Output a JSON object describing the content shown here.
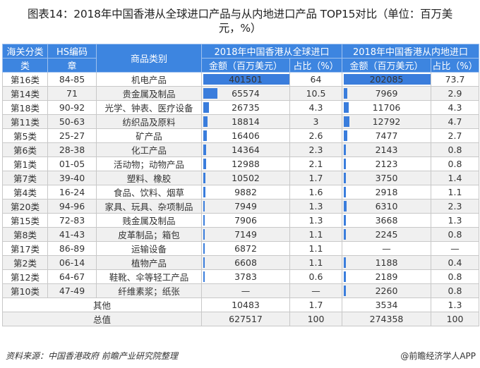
{
  "title": {
    "line1": "图表14：2018年中国香港从全球进口产品与从内地进口产品 TOP15对比（单位：百万美",
    "line2": "元，%）"
  },
  "table": {
    "headers": {
      "customs_class_top": "海关分类",
      "customs_class_bottom": "类",
      "hs_code_top": "HS编码",
      "hs_code_bottom": "章",
      "category": "商品类别",
      "global_group": "2018年中国香港从全球进口",
      "mainland_group": "2018年中国香港从内地进口",
      "amount": "金额（百万美元）",
      "share": "占比（%）"
    },
    "rows": [
      {
        "cls": "第16类",
        "hs": "84-85",
        "name": "机电产品",
        "g_amt": "401501",
        "g_pct": "64",
        "m_amt": "202085",
        "m_pct": "73.7",
        "g_bar": 98,
        "m_bar": 98
      },
      {
        "cls": "第14类",
        "hs": "71",
        "name": "贵金属及制品",
        "g_amt": "65574",
        "g_pct": "10.5",
        "m_amt": "7969",
        "m_pct": "2.9",
        "g_bar": 16,
        "m_bar": 3.9
      },
      {
        "cls": "第18类",
        "hs": "90-92",
        "name": "光学、钟表、医疗设备",
        "g_amt": "26735",
        "g_pct": "4.3",
        "m_amt": "11706",
        "m_pct": "4.3",
        "g_bar": 6.5,
        "m_bar": 5.7
      },
      {
        "cls": "第11类",
        "hs": "50-63",
        "name": "纺织品及原料",
        "g_amt": "18814",
        "g_pct": "3",
        "m_amt": "12792",
        "m_pct": "4.7",
        "g_bar": 4.6,
        "m_bar": 6.2
      },
      {
        "cls": "第5类",
        "hs": "25-27",
        "name": "矿产品",
        "g_amt": "16406",
        "g_pct": "2.6",
        "m_amt": "7477",
        "m_pct": "2.7",
        "g_bar": 4.0,
        "m_bar": 3.6
      },
      {
        "cls": "第6类",
        "hs": "28-38",
        "name": "化工产品",
        "g_amt": "14364",
        "g_pct": "2.3",
        "m_amt": "2143",
        "m_pct": "0.8",
        "g_bar": 3.5,
        "m_bar": 1.0
      },
      {
        "cls": "第1类",
        "hs": "01-05",
        "name": "活动物；动物产品",
        "g_amt": "12988",
        "g_pct": "2.1",
        "m_amt": "2123",
        "m_pct": "0.8",
        "g_bar": 3.2,
        "m_bar": 1.0
      },
      {
        "cls": "第7类",
        "hs": "39-40",
        "name": "塑料、橡胶",
        "g_amt": "10502",
        "g_pct": "1.7",
        "m_amt": "3750",
        "m_pct": "1.4",
        "g_bar": 2.6,
        "m_bar": 1.8
      },
      {
        "cls": "第4类",
        "hs": "16-24",
        "name": "食品、饮料、烟草",
        "g_amt": "9882",
        "g_pct": "1.6",
        "m_amt": "2918",
        "m_pct": "1.1",
        "g_bar": 2.4,
        "m_bar": 1.4
      },
      {
        "cls": "第20类",
        "hs": "94-96",
        "name": "家具、玩具、杂项制品",
        "g_amt": "7949",
        "g_pct": "1.3",
        "m_amt": "6310",
        "m_pct": "2.3",
        "g_bar": 1.9,
        "m_bar": 3.1
      },
      {
        "cls": "第15类",
        "hs": "72-83",
        "name": "贱金属及制品",
        "g_amt": "7906",
        "g_pct": "1.3",
        "m_amt": "3668",
        "m_pct": "1.3",
        "g_bar": 1.9,
        "m_bar": 1.8
      },
      {
        "cls": "第8类",
        "hs": "41-43",
        "name": "皮革制品；箱包",
        "g_amt": "7149",
        "g_pct": "1.1",
        "m_amt": "2245",
        "m_pct": "0.8",
        "g_bar": 1.7,
        "m_bar": 1.1
      },
      {
        "cls": "第17类",
        "hs": "86-89",
        "name": "运输设备",
        "g_amt": "6872",
        "g_pct": "1.1",
        "m_amt": "—",
        "m_pct": "—",
        "g_bar": 1.7,
        "m_bar": 0
      },
      {
        "cls": "第2类",
        "hs": "06-14",
        "name": "植物产品",
        "g_amt": "6608",
        "g_pct": "1.1",
        "m_amt": "1188",
        "m_pct": "0.4",
        "g_bar": 1.6,
        "m_bar": 0.8
      },
      {
        "cls": "第12类",
        "hs": "64-67",
        "name": "鞋靴、伞等轻工产品",
        "g_amt": "3783",
        "g_pct": "0.6",
        "m_amt": "2189",
        "m_pct": "0.8",
        "g_bar": 0.9,
        "m_bar": 1.1
      },
      {
        "cls": "第10类",
        "hs": "47-49",
        "name": "纤维素浆；纸张",
        "g_amt": "—",
        "g_pct": "—",
        "m_amt": "2260",
        "m_pct": "0.8",
        "g_bar": 0,
        "m_bar": 1.1
      }
    ],
    "other": {
      "label": "其他",
      "g_amt": "10483",
      "g_pct": "1.7",
      "m_amt": "3534",
      "m_pct": "1.3"
    },
    "total": {
      "label": "总值",
      "g_amt": "627517",
      "g_pct": "100",
      "m_amt": "274358",
      "m_pct": "100"
    }
  },
  "footer": {
    "source": "资料来源：中国香港政府 前瞻产业研究院整理",
    "credit": "@前瞻经济学人APP"
  },
  "colors": {
    "header_bg": "#3d85e0",
    "bar": "#3a7ddc",
    "row_alt": "#f0f0f0",
    "border": "#c8c8c8"
  }
}
